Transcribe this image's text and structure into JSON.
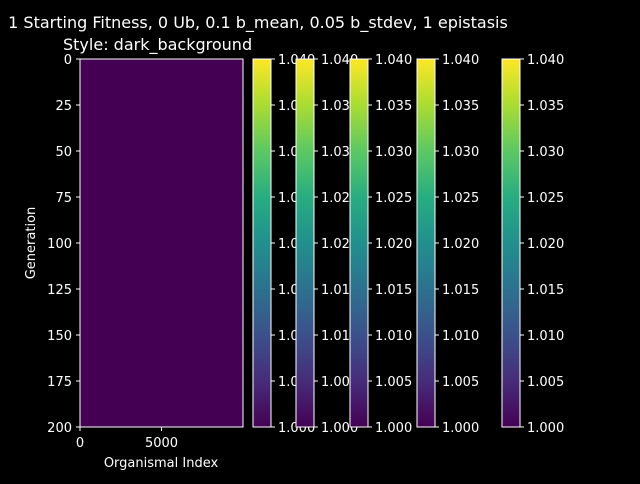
{
  "chart_data": {
    "type": "heatmap",
    "title": "1 Starting Fitness, 0 Ub, 0.1 b_mean, 0.05 b_stdev, 1 epistasis",
    "subtitle": "Style: dark_background",
    "xlabel": "Organismal Index",
    "ylabel": "Generation",
    "x_ticks": [
      0,
      5000
    ],
    "xlim": [
      0,
      10000
    ],
    "y_ticks": [
      0,
      25,
      50,
      75,
      100,
      125,
      150,
      175,
      200
    ],
    "ylim": [
      0,
      200
    ],
    "heatmap_value": 1.0,
    "colormap": "viridis",
    "colorbars": [
      {
        "ticks": [
          "1.000",
          "1.005",
          "1.010",
          "1.015",
          "1.020",
          "1.025",
          "1.030",
          "1.035",
          "1.040"
        ]
      },
      {
        "ticks": [
          "1.000",
          "1.005",
          "1.010",
          "1.015",
          "1.020",
          "1.025",
          "1.030",
          "1.035",
          "1.040"
        ]
      },
      {
        "ticks": [
          "1.000",
          "1.005",
          "1.010",
          "1.015",
          "1.020",
          "1.025",
          "1.030",
          "1.035",
          "1.040"
        ]
      },
      {
        "ticks": [
          "1.000",
          "1.005",
          "1.010",
          "1.015",
          "1.020",
          "1.025",
          "1.030",
          "1.035",
          "1.040"
        ]
      },
      {
        "ticks": [
          "1.000",
          "1.005",
          "1.010",
          "1.015",
          "1.020",
          "1.025",
          "1.030",
          "1.035",
          "1.040"
        ]
      }
    ],
    "colorbar_range": [
      1.0,
      1.04
    ],
    "colors": {
      "heatmap_fill": "#440154",
      "background": "#000000",
      "foreground": "#ffffff"
    }
  }
}
